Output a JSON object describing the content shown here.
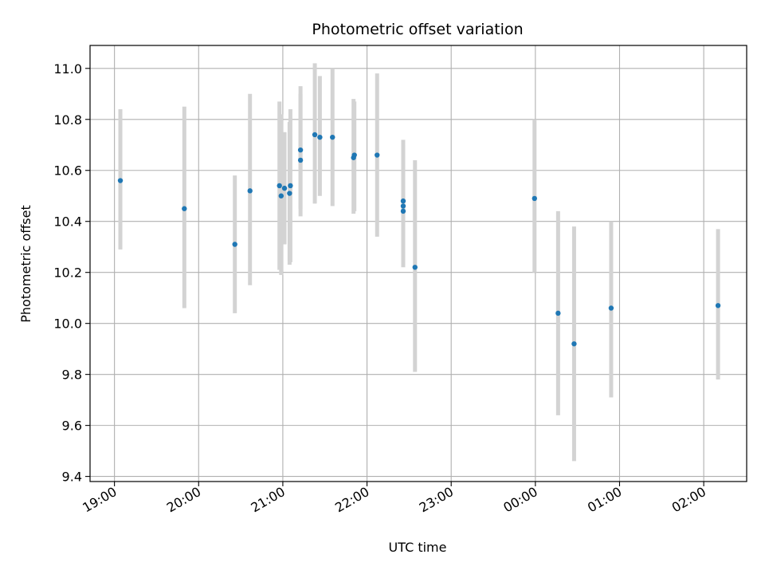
{
  "chart_data": {
    "type": "scatter",
    "title": "Photometric offset variation",
    "xlabel": "UTC time",
    "ylabel": "Photometric offset",
    "x_unit": "hours UTC (values past 24 are after midnight)",
    "xlim": [
      18.71,
      26.51
    ],
    "ylim": [
      9.38,
      11.09
    ],
    "grid": true,
    "x_ticks": [
      {
        "value": 19,
        "label": "19:00"
      },
      {
        "value": 20,
        "label": "20:00"
      },
      {
        "value": 21,
        "label": "21:00"
      },
      {
        "value": 22,
        "label": "22:00"
      },
      {
        "value": 23,
        "label": "23:00"
      },
      {
        "value": 24,
        "label": "00:00"
      },
      {
        "value": 25,
        "label": "01:00"
      },
      {
        "value": 26,
        "label": "02:00"
      }
    ],
    "y_ticks": [
      {
        "value": 9.4,
        "label": "9.4"
      },
      {
        "value": 9.6,
        "label": "9.6"
      },
      {
        "value": 9.8,
        "label": "9.8"
      },
      {
        "value": 10.0,
        "label": "10.0"
      },
      {
        "value": 10.2,
        "label": "10.2"
      },
      {
        "value": 10.4,
        "label": "10.4"
      },
      {
        "value": 10.6,
        "label": "10.6"
      },
      {
        "value": 10.8,
        "label": "10.8"
      },
      {
        "value": 11.0,
        "label": "11.0"
      }
    ],
    "point_color": "#1f77b4",
    "errorbar_color": "#d3d3d3",
    "points": [
      {
        "x": 19.07,
        "y": 10.56,
        "ylow": 10.29,
        "yhigh": 10.84
      },
      {
        "x": 19.83,
        "y": 10.45,
        "ylow": 10.06,
        "yhigh": 10.85
      },
      {
        "x": 20.43,
        "y": 10.31,
        "ylow": 10.04,
        "yhigh": 10.58
      },
      {
        "x": 20.61,
        "y": 10.52,
        "ylow": 10.15,
        "yhigh": 10.9
      },
      {
        "x": 20.96,
        "y": 10.54,
        "ylow": 10.21,
        "yhigh": 10.87
      },
      {
        "x": 20.98,
        "y": 10.5,
        "ylow": 10.19,
        "yhigh": 10.82
      },
      {
        "x": 21.02,
        "y": 10.53,
        "ylow": 10.31,
        "yhigh": 10.75
      },
      {
        "x": 21.08,
        "y": 10.51,
        "ylow": 10.23,
        "yhigh": 10.79
      },
      {
        "x": 21.09,
        "y": 10.54,
        "ylow": 10.24,
        "yhigh": 10.84
      },
      {
        "x": 21.21,
        "y": 10.64,
        "ylow": 10.42,
        "yhigh": 10.9
      },
      {
        "x": 21.21,
        "y": 10.68,
        "ylow": 10.45,
        "yhigh": 10.93
      },
      {
        "x": 21.38,
        "y": 10.74,
        "ylow": 10.47,
        "yhigh": 11.02
      },
      {
        "x": 21.44,
        "y": 10.73,
        "ylow": 10.5,
        "yhigh": 10.97
      },
      {
        "x": 21.59,
        "y": 10.73,
        "ylow": 10.46,
        "yhigh": 11.0
      },
      {
        "x": 21.84,
        "y": 10.65,
        "ylow": 10.43,
        "yhigh": 10.88
      },
      {
        "x": 21.85,
        "y": 10.66,
        "ylow": 10.44,
        "yhigh": 10.87
      },
      {
        "x": 22.12,
        "y": 10.66,
        "ylow": 10.34,
        "yhigh": 10.98
      },
      {
        "x": 22.43,
        "y": 10.48,
        "ylow": 10.22,
        "yhigh": 10.72
      },
      {
        "x": 22.43,
        "y": 10.46,
        "ylow": 10.23,
        "yhigh": 10.7
      },
      {
        "x": 22.43,
        "y": 10.44,
        "ylow": 10.25,
        "yhigh": 10.68
      },
      {
        "x": 22.57,
        "y": 10.22,
        "ylow": 9.81,
        "yhigh": 10.64
      },
      {
        "x": 23.99,
        "y": 10.49,
        "ylow": 10.2,
        "yhigh": 10.8
      },
      {
        "x": 24.27,
        "y": 10.04,
        "ylow": 9.64,
        "yhigh": 10.44
      },
      {
        "x": 24.46,
        "y": 9.92,
        "ylow": 9.46,
        "yhigh": 10.38
      },
      {
        "x": 24.9,
        "y": 10.06,
        "ylow": 9.71,
        "yhigh": 10.4
      },
      {
        "x": 26.17,
        "y": 10.07,
        "ylow": 9.78,
        "yhigh": 10.37
      }
    ]
  }
}
